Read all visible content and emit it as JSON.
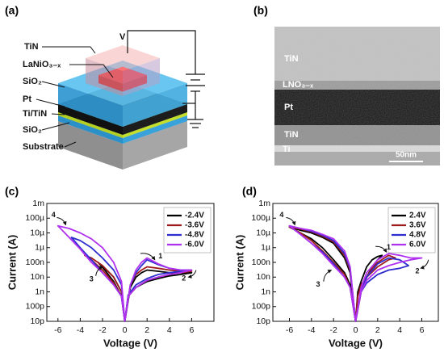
{
  "panel_labels": [
    "(a)",
    "(b)",
    "(c)",
    "(d)"
  ],
  "schematic": {
    "voltage": "V",
    "layers": [
      "TiN",
      "LaNiO₃₋ₓ",
      "SiO₂",
      "Pt",
      "Ti/TiN",
      "SiO₂",
      "Substrate"
    ]
  },
  "tem": {
    "labels": [
      "TiN",
      "LNO₃₋ₓ",
      "Pt",
      "TiN",
      "Ti"
    ],
    "scale_bar": "50nm"
  },
  "chart_data": [
    {
      "type": "line",
      "ylabel": "Current (A)",
      "xlabel": "Voltage (V)",
      "log_y": true,
      "xlim": [
        -7,
        8
      ],
      "ylim": [
        1e-11,
        0.001
      ],
      "xticks": [
        -6,
        -4,
        -2,
        0,
        2,
        4,
        6
      ],
      "yticks": [
        {
          "value": 1e-11,
          "label": "10p"
        },
        {
          "value": 1e-10,
          "label": "100p"
        },
        {
          "value": 1e-09,
          "label": "1n"
        },
        {
          "value": 1e-08,
          "label": "10n"
        },
        {
          "value": 1e-07,
          "label": "100n"
        },
        {
          "value": 1e-06,
          "label": "1µ"
        },
        {
          "value": 1e-05,
          "label": "10µ"
        },
        {
          "value": 0.0001,
          "label": "100µ"
        },
        {
          "value": 0.001,
          "label": "1m"
        }
      ],
      "legend": "upper right",
      "annotations": [
        "1",
        "2",
        "3",
        "4"
      ],
      "series": [
        {
          "name": "-2.4V",
          "color": "#000000",
          "x": [
            0,
            0.5,
            1,
            1.5,
            2,
            3,
            4,
            5,
            6,
            5,
            4,
            3,
            2,
            1,
            0.3,
            0,
            -0.3,
            -1,
            -1.8,
            -2.4,
            -1.8,
            -1,
            -0.3,
            0
          ],
          "values": [
            1e-11,
            2e-09,
            1e-08,
            2e-08,
            3e-08,
            2.5e-08,
            2e-08,
            2e-08,
            2e-08,
            1.5e-08,
            1.2e-08,
            8e-09,
            5e-09,
            2e-09,
            5e-10,
            1e-11,
            5e-10,
            5e-09,
            3e-08,
            1e-07,
            4e-08,
            1e-08,
            1e-09,
            1e-11
          ]
        },
        {
          "name": "-3.6V",
          "color": "#9e1b1b",
          "x": [
            0,
            0.5,
            1,
            1.5,
            2,
            3,
            4,
            5,
            6,
            5,
            4,
            3,
            2,
            1,
            0.3,
            0,
            -0.3,
            -1,
            -2,
            -3,
            -3.6,
            -3,
            -2,
            -1,
            -0.3,
            0
          ],
          "values": [
            1e-11,
            3e-09,
            1.5e-08,
            3e-08,
            5e-08,
            4e-08,
            3e-08,
            2.5e-08,
            2.5e-08,
            2e-08,
            1.5e-08,
            1e-08,
            6e-09,
            2e-09,
            5e-10,
            1e-11,
            5e-10,
            4e-09,
            3e-08,
            1.5e-07,
            3e-07,
            2e-07,
            6e-08,
            1e-08,
            1e-09,
            1e-11
          ]
        },
        {
          "name": "-4.8V",
          "color": "#2e2ed0",
          "x": [
            0,
            0.5,
            1,
            1.5,
            2,
            3,
            4,
            5,
            6,
            5,
            4,
            3,
            2,
            1,
            0.3,
            0,
            -0.3,
            -1,
            -2,
            -3,
            -4,
            -4.8,
            -4,
            -3,
            -2,
            -1,
            -0.3,
            0
          ],
          "values": [
            1e-11,
            3e-09,
            2e-08,
            6e-08,
            1.5e-07,
            7e-08,
            4e-08,
            3e-08,
            3e-08,
            2.5e-08,
            2e-08,
            1.5e-08,
            8e-09,
            3e-09,
            6e-10,
            1e-11,
            5e-10,
            3e-09,
            2e-08,
            1.5e-07,
            1e-06,
            5e-06,
            3e-06,
            1e-06,
            2e-07,
            3e-08,
            3e-09,
            1e-11
          ]
        },
        {
          "name": "-6.0V",
          "color": "#b030f0",
          "x": [
            0,
            0.5,
            1,
            1.5,
            2,
            3,
            4,
            5,
            6,
            5,
            4,
            3,
            2,
            1,
            0.3,
            0,
            -0.3,
            -1,
            -2,
            -3,
            -4,
            -5,
            -6,
            -5,
            -4,
            -3,
            -2,
            -1,
            -0.3,
            0
          ],
          "values": [
            1e-11,
            3e-09,
            3e-08,
            1e-07,
            2e-07,
            8e-08,
            4e-08,
            3e-08,
            3e-08,
            2e-08,
            1.5e-08,
            1e-08,
            6e-09,
            2e-09,
            5e-10,
            1e-11,
            5e-10,
            3e-09,
            2e-08,
            1e-07,
            8e-07,
            5e-06,
            3e-05,
            2e-05,
            1e-05,
            4e-06,
            1e-06,
            1e-07,
            5e-09,
            1e-11
          ]
        }
      ]
    },
    {
      "type": "line",
      "ylabel": "Current (A)",
      "xlabel": "Voltage (V)",
      "log_y": true,
      "xlim": [
        -7.5,
        7.5
      ],
      "ylim": [
        1e-11,
        0.001
      ],
      "xticks": [
        -6,
        -4,
        -2,
        0,
        2,
        4,
        6
      ],
      "yticks": [
        {
          "value": 1e-11,
          "label": "10p"
        },
        {
          "value": 1e-10,
          "label": "100p"
        },
        {
          "value": 1e-09,
          "label": "1n"
        },
        {
          "value": 1e-08,
          "label": "10n"
        },
        {
          "value": 1e-07,
          "label": "100n"
        },
        {
          "value": 1e-06,
          "label": "1µ"
        },
        {
          "value": 1e-05,
          "label": "10µ"
        },
        {
          "value": 0.0001,
          "label": "100µ"
        },
        {
          "value": 0.001,
          "label": "1m"
        }
      ],
      "legend": "upper right",
      "annotations": [
        "1",
        "2",
        "3",
        "4"
      ],
      "series": [
        {
          "name": "2.4V",
          "color": "#000000",
          "x": [
            0,
            0.5,
            1,
            1.5,
            2,
            2.4,
            2,
            1.5,
            1,
            0.5,
            0.2,
            0,
            -0.5,
            -1,
            -2,
            -3,
            -4,
            -5,
            -6,
            -5,
            -4,
            -3,
            -2,
            -1,
            -0.5,
            0
          ],
          "values": [
            1e-11,
            1e-09,
            1e-08,
            5e-08,
            1.5e-07,
            3e-07,
            2.5e-07,
            1.5e-07,
            5e-08,
            5e-09,
            1e-09,
            1e-11,
            3e-09,
            2e-08,
            1.5e-07,
            1e-06,
            4e-06,
            1e-05,
            2.5e-05,
            1.5e-05,
            1e-05,
            5e-06,
            2e-06,
            2e-07,
            2e-08,
            1e-11
          ]
        },
        {
          "name": "3.6V",
          "color": "#9e1b1b",
          "x": [
            0,
            0.5,
            1,
            1.5,
            2,
            3,
            3.6,
            3,
            2,
            1,
            0.5,
            0.2,
            0,
            -0.5,
            -1,
            -2,
            -3,
            -4,
            -5,
            -6,
            -5,
            -4,
            -3,
            -2,
            -1,
            -0.5,
            0
          ],
          "values": [
            1e-11,
            1e-09,
            1e-08,
            4e-08,
            1e-07,
            3e-07,
            2e-07,
            1.5e-07,
            5e-08,
            1e-08,
            3e-09,
            5e-10,
            1e-11,
            2e-09,
            1.5e-08,
            1e-07,
            6e-07,
            3e-06,
            1e-05,
            2.5e-05,
            1.8e-05,
            1.2e-05,
            6e-06,
            2.5e-06,
            3e-07,
            3e-08,
            1e-11
          ]
        },
        {
          "name": "4.8V",
          "color": "#2e2ed0",
          "x": [
            0,
            0.5,
            1,
            2,
            3,
            4,
            4.8,
            4,
            3,
            2,
            1,
            0.5,
            0,
            -0.5,
            -1,
            -2,
            -3,
            -4,
            -5,
            -6,
            -5,
            -4,
            -3,
            -2,
            -1,
            -0.5,
            0
          ],
          "values": [
            1e-11,
            1e-09,
            1e-08,
            8e-08,
            2e-07,
            1.5e-07,
            6e-08,
            4e-08,
            3e-08,
            1.5e-08,
            4e-09,
            1e-09,
            1e-11,
            2e-09,
            1e-08,
            8e-08,
            5e-07,
            2e-06,
            8e-06,
            3e-05,
            2e-05,
            1.3e-05,
            7e-06,
            3e-06,
            4e-07,
            4e-08,
            1e-11
          ]
        },
        {
          "name": "6.0V",
          "color": "#b030f0",
          "x": [
            0,
            0.5,
            1,
            2,
            3,
            4,
            5,
            6,
            5,
            4,
            3,
            2,
            1,
            0.5,
            0,
            -0.5,
            -1,
            -2,
            -3,
            -4,
            -5,
            -6,
            -5,
            -4,
            -3,
            -2,
            -1,
            -0.5,
            0
          ],
          "values": [
            1e-11,
            2e-09,
            2e-08,
            1.5e-07,
            4e-07,
            3e-07,
            2e-07,
            2e-07,
            1.5e-07,
            1e-07,
            6e-08,
            3e-08,
            6e-09,
            1e-09,
            1e-11,
            2e-09,
            1e-08,
            6e-08,
            4e-07,
            2e-06,
            8e-06,
            3e-05,
            2e-05,
            1.5e-05,
            8e-06,
            4e-06,
            6e-07,
            5e-08,
            1e-11
          ]
        }
      ]
    }
  ]
}
